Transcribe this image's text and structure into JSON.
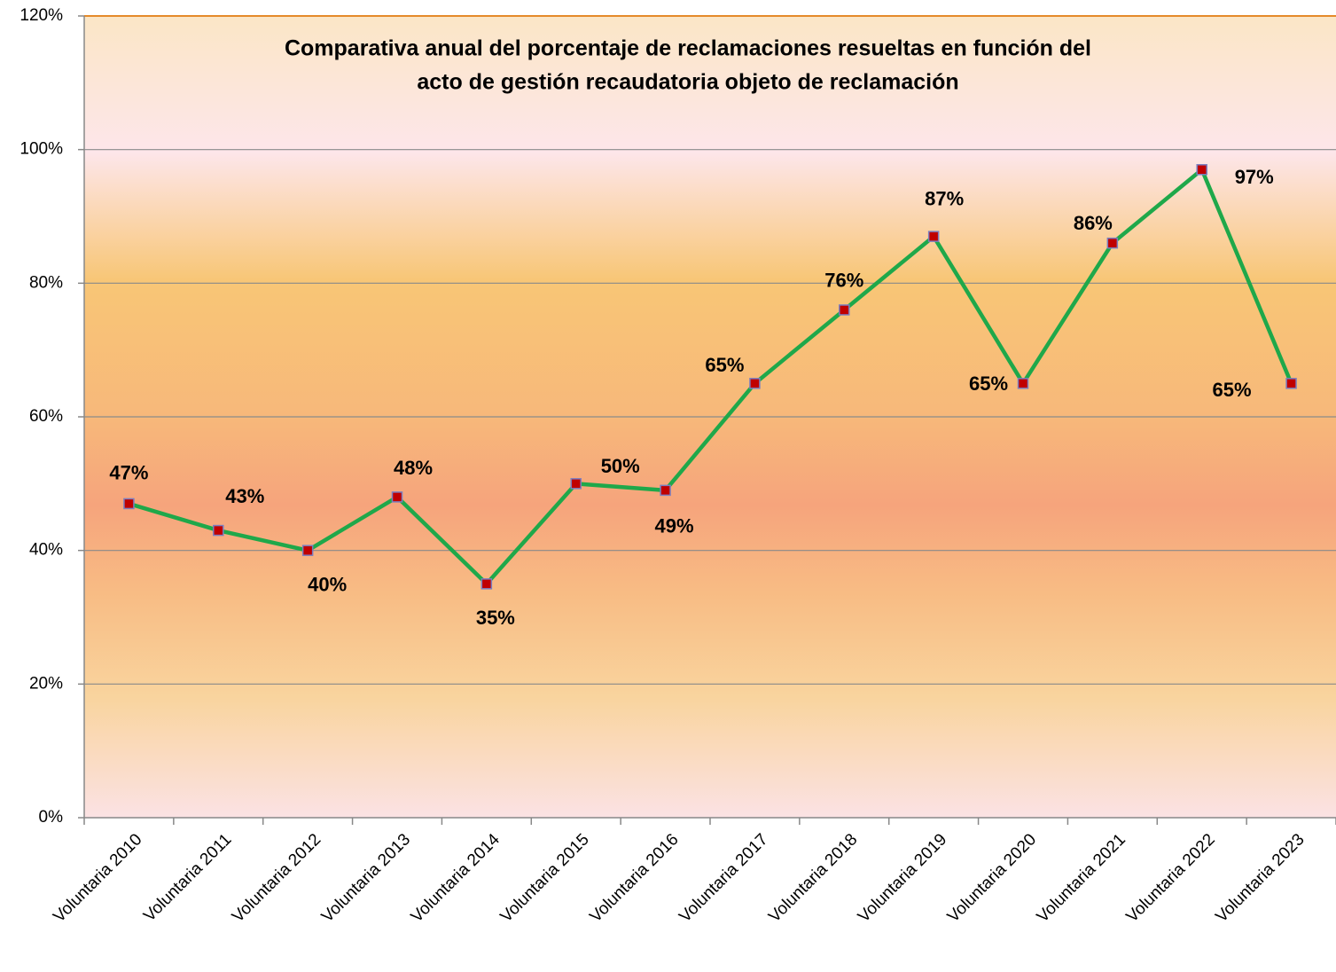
{
  "chart_data": {
    "type": "line",
    "title": [
      "Comparativa anual del porcentaje de reclamaciones resueltas en función del",
      "acto de gestión recaudatoria objeto de reclamación"
    ],
    "categories": [
      "Voluntaria 2010",
      "Voluntaria 2011",
      "Voluntaria 2012",
      "Voluntaria 2013",
      "Voluntaria 2014",
      "Voluntaria 2015",
      "Voluntaria 2016",
      "Voluntaria 2017",
      "Voluntaria 2018",
      "Voluntaria 2019",
      "Voluntaria 2020",
      "Voluntaria 2021",
      "Voluntaria 2022",
      "Voluntaria 2023"
    ],
    "values": [
      47,
      43,
      40,
      48,
      35,
      50,
      49,
      65,
      76,
      87,
      65,
      86,
      97,
      65
    ],
    "value_labels": [
      "47%",
      "43%",
      "40%",
      "48%",
      "35%",
      "50%",
      "49%",
      "65%",
      "76%",
      "87%",
      "65%",
      "86%",
      "97%",
      "65%"
    ],
    "color": "#1fa84a",
    "marker_color": "#c00000",
    "ylim": [
      0,
      120
    ],
    "yticks": [
      {
        "value": 0,
        "label": "0%"
      },
      {
        "value": 20,
        "label": "20%"
      },
      {
        "value": 40,
        "label": "40%"
      },
      {
        "value": 60,
        "label": "60%"
      },
      {
        "value": 80,
        "label": "80%"
      },
      {
        "value": 100,
        "label": "100%"
      },
      {
        "value": 120,
        "label": "120%"
      }
    ],
    "grid": true
  }
}
